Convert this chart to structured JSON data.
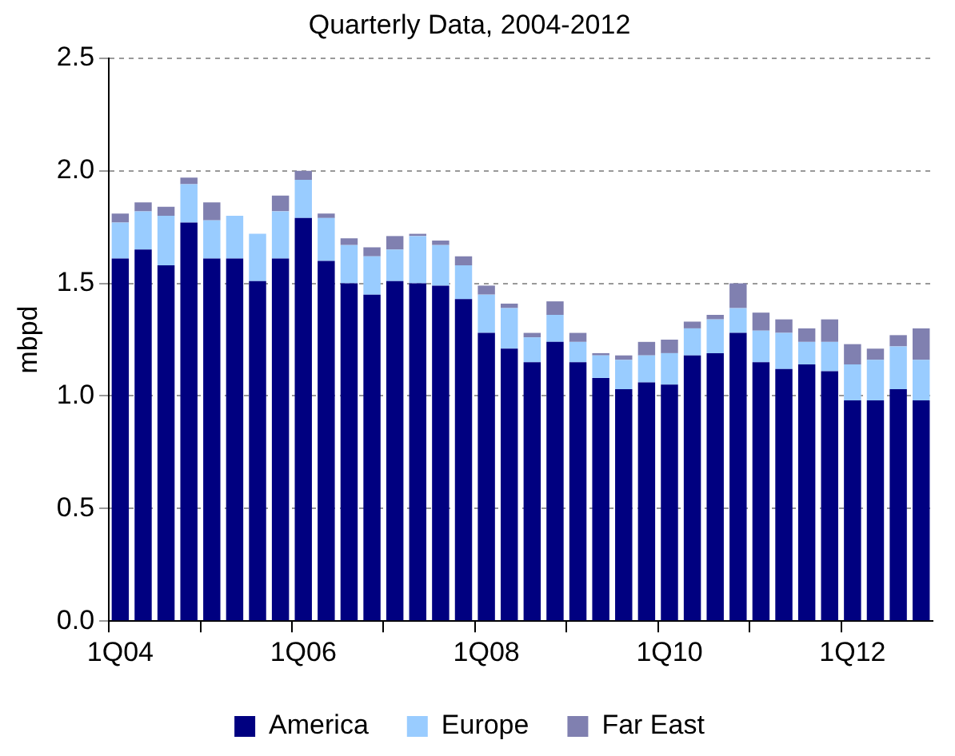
{
  "chart_data": {
    "type": "bar",
    "title": "Quarterly Data, 2004-2012",
    "ylabel": "mbpd",
    "stacked": true,
    "categories": [
      "1Q04",
      null,
      null,
      null,
      null,
      null,
      null,
      null,
      "1Q06",
      null,
      null,
      null,
      null,
      null,
      null,
      null,
      "1Q08",
      null,
      null,
      null,
      null,
      null,
      null,
      null,
      "1Q10",
      null,
      null,
      null,
      null,
      null,
      null,
      null,
      "1Q12",
      null,
      null,
      null
    ],
    "series": [
      {
        "name": "America",
        "color": "#000080",
        "values": [
          1.61,
          1.65,
          1.58,
          1.77,
          1.61,
          1.61,
          1.51,
          1.61,
          1.79,
          1.6,
          1.5,
          1.45,
          1.51,
          1.5,
          1.49,
          1.43,
          1.28,
          1.21,
          1.15,
          1.24,
          1.15,
          1.08,
          1.03,
          1.06,
          1.05,
          1.18,
          1.19,
          1.28,
          1.15,
          1.12,
          1.14,
          1.11,
          0.98,
          0.98,
          1.03,
          0.98
        ]
      },
      {
        "name": "Europe",
        "color": "#99ccff",
        "values": [
          0.16,
          0.17,
          0.22,
          0.17,
          0.17,
          0.19,
          0.21,
          0.21,
          0.17,
          0.19,
          0.17,
          0.17,
          0.14,
          0.21,
          0.18,
          0.15,
          0.17,
          0.18,
          0.11,
          0.12,
          0.09,
          0.1,
          0.13,
          0.12,
          0.14,
          0.12,
          0.15,
          0.11,
          0.14,
          0.16,
          0.1,
          0.13,
          0.16,
          0.18,
          0.19,
          0.18
        ]
      },
      {
        "name": "Far East",
        "color": "#8080b0",
        "values": [
          0.04,
          0.04,
          0.04,
          0.03,
          0.08,
          0,
          0,
          0.07,
          0.04,
          0.02,
          0.03,
          0.04,
          0.06,
          0.01,
          0.02,
          0.04,
          0.04,
          0.02,
          0.02,
          0.06,
          0.04,
          0.01,
          0.02,
          0.06,
          0.06,
          0.03,
          0.02,
          0.11,
          0.08,
          0.06,
          0.06,
          0.1,
          0.09,
          0.05,
          0.05,
          0.14
        ]
      }
    ],
    "ylim": [
      0,
      2.5
    ],
    "yticks": [
      {
        "value": 0,
        "label": "0.0"
      },
      0.5,
      {
        "value": 1,
        "label": "1.0"
      },
      1.5,
      {
        "value": 2,
        "label": "2.0"
      },
      2.5
    ],
    "grid": "y",
    "legend": "bottom"
  }
}
